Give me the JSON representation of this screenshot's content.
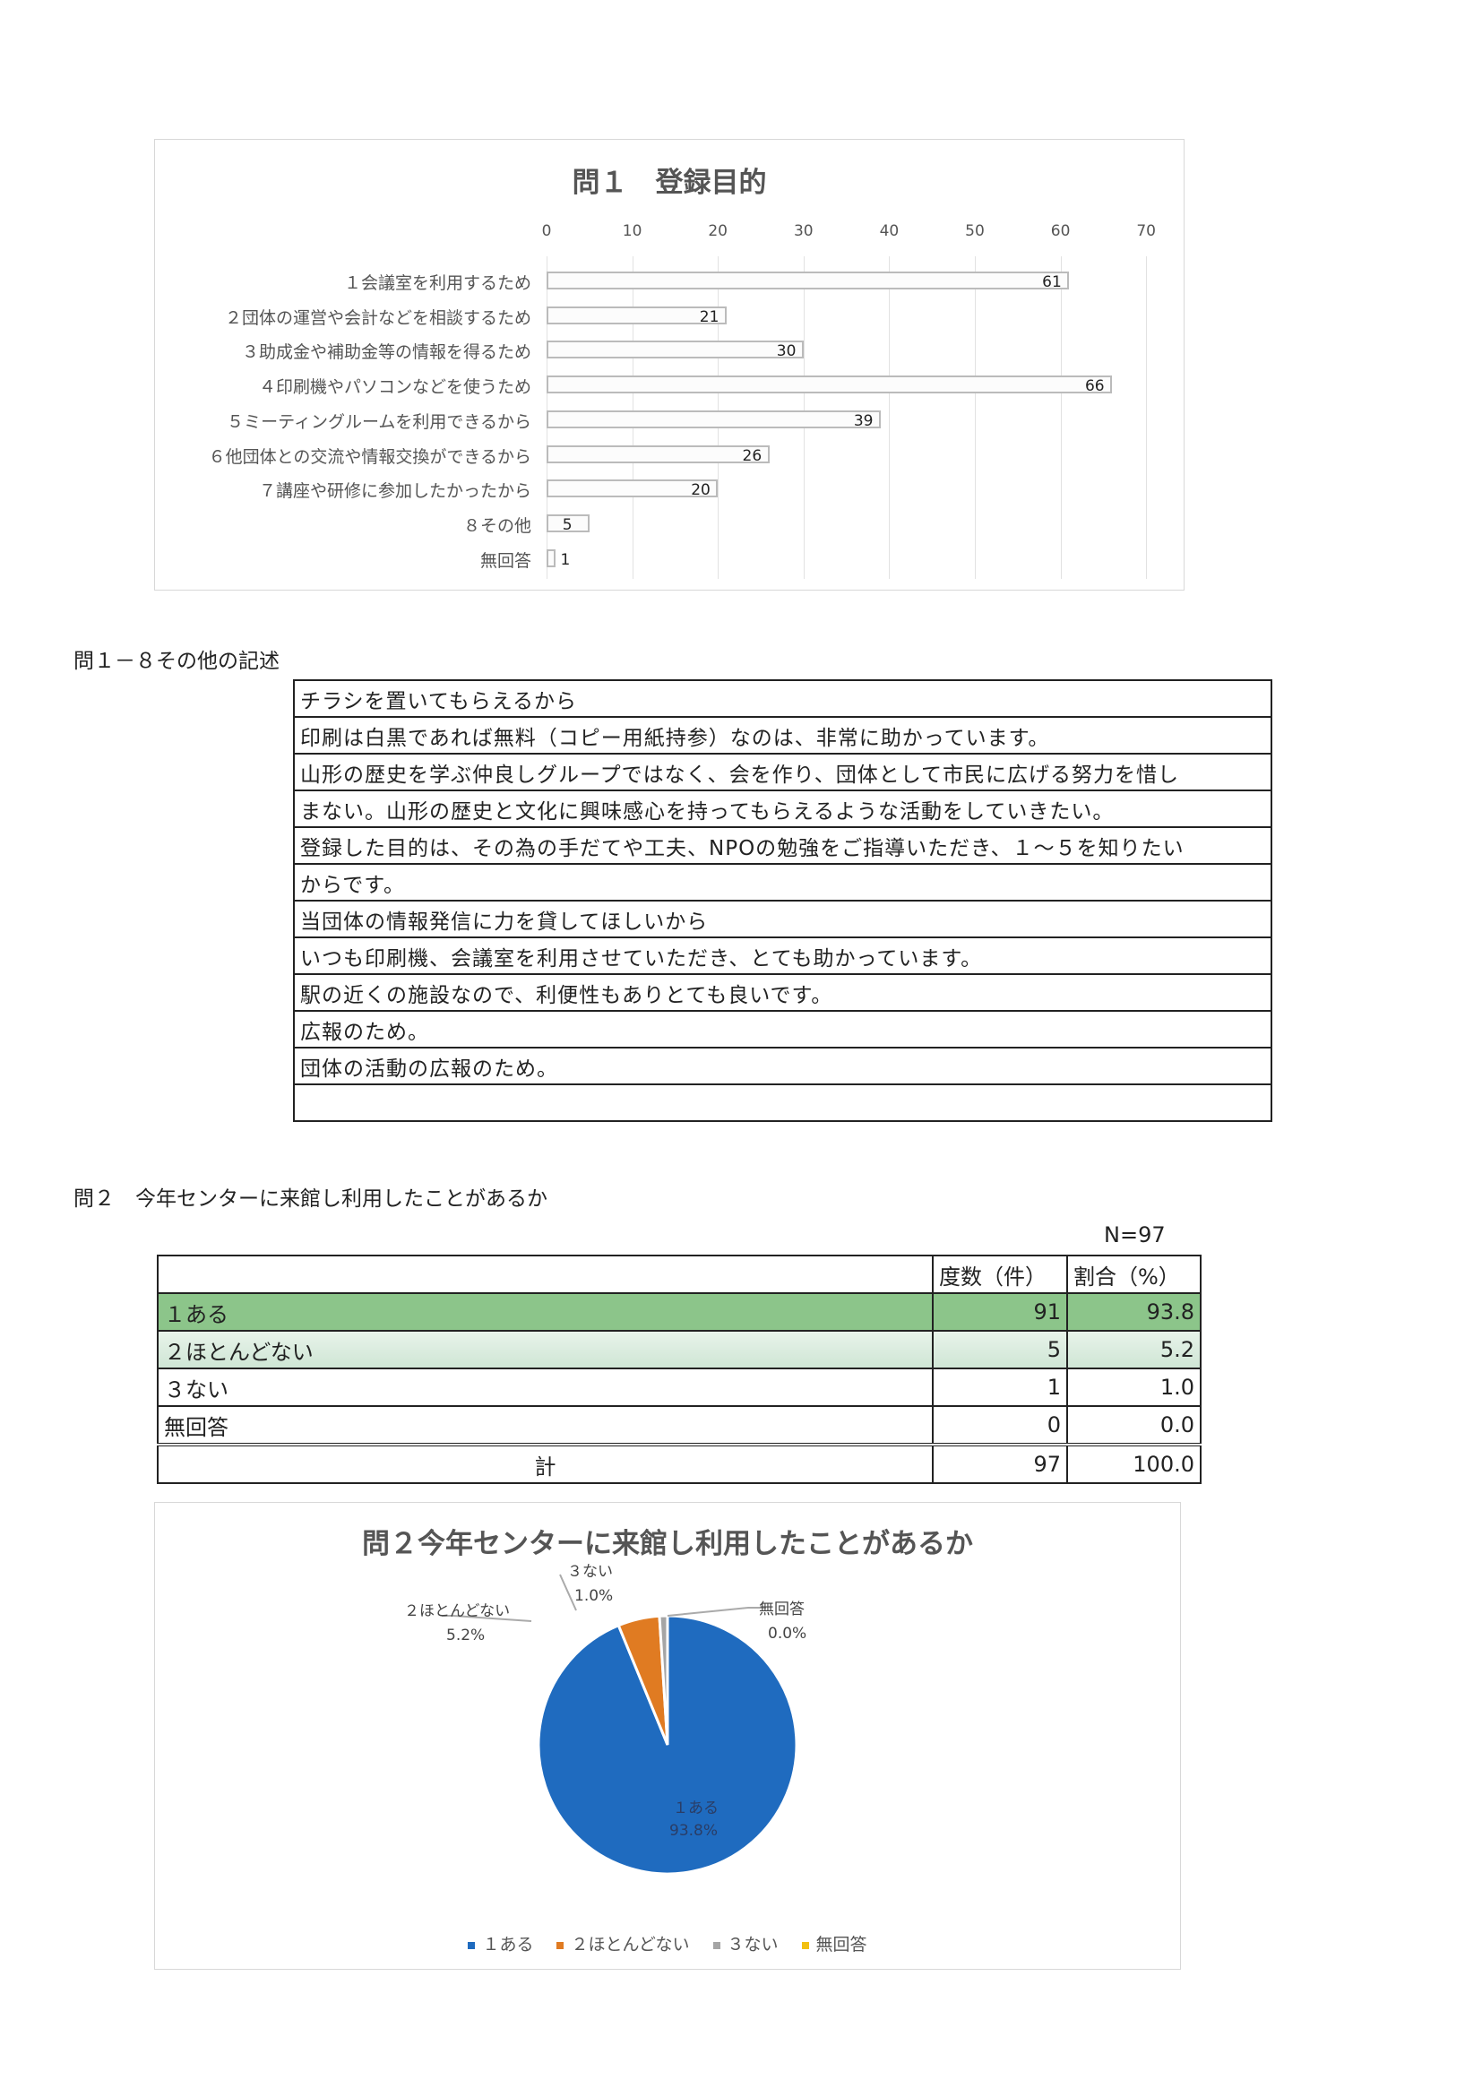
{
  "chart_data": [
    {
      "type": "bar",
      "orientation": "horizontal",
      "title": "問１　登録目的",
      "categories": [
        "１会議室を利用するため",
        "２団体の運営や会計などを相談するため",
        "３助成金や補助金等の情報を得るため",
        "４印刷機やパソコンなどを使うため",
        "５ミーティングルームを利用できるから",
        "６他団体との交流や情報交換ができるから",
        "７講座や研修に参加したかったから",
        "８その他",
        "無回答"
      ],
      "values": [
        61,
        21,
        30,
        66,
        39,
        26,
        20,
        5,
        1
      ],
      "xlim": [
        0,
        70
      ],
      "xticks": [
        0,
        10,
        20,
        30,
        40,
        50,
        60,
        70
      ],
      "axis_position": "top",
      "grid": true,
      "bar_color": "#fcfcfc"
    },
    {
      "type": "pie",
      "title": "問２今年センターに来館し利用したことがあるか",
      "categories": [
        "１ある",
        "２ほとんどない",
        "３ない",
        "無回答"
      ],
      "values": [
        93.8,
        5.2,
        1.0,
        0.0
      ],
      "labels": [
        "93.8%",
        "5.2%",
        "1.0%",
        "0.0%"
      ],
      "colors": [
        "#1f6bbf",
        "#e07b22",
        "#a5a5a5",
        "#f2c012"
      ],
      "legend": "bottom"
    }
  ],
  "q1_other": {
    "heading": "問１－８その他の記述",
    "rows": [
      "チラシを置いてもらえるから",
      "印刷は白黒であれば無料（コピー用紙持参）なのは、非常に助かっています。",
      "山形の歴史を学ぶ仲良しグループではなく、会を作り、団体として市民に広げる努力を惜し",
      "まない。山形の歴史と文化に興味感心を持ってもらえるような活動をしていきたい。",
      "登録した目的は、その為の手だてや工夫、NPOの勉強をご指導いただき、１～５を知りたい",
      "からです。",
      "当団体の情報発信に力を貸してほしいから",
      "いつも印刷機、会議室を利用させていただき、とても助かっています。",
      "駅の近くの施設なので、利便性もありとても良いです。",
      "広報のため。",
      "団体の活動の広報のため。",
      ""
    ]
  },
  "q2": {
    "heading": "問２　今年センターに来館し利用したことがあるか",
    "n": "N=97",
    "headers": [
      "",
      "度数（件）",
      "割合（%）"
    ],
    "rows": [
      [
        "１ある",
        "91",
        "93.8"
      ],
      [
        "２ほとんどない",
        "5",
        "5.2"
      ],
      [
        "３ない",
        "1",
        "1.0"
      ],
      [
        "無回答",
        "0",
        "0.0"
      ]
    ],
    "total": [
      "計",
      "97",
      "100.0"
    ]
  }
}
